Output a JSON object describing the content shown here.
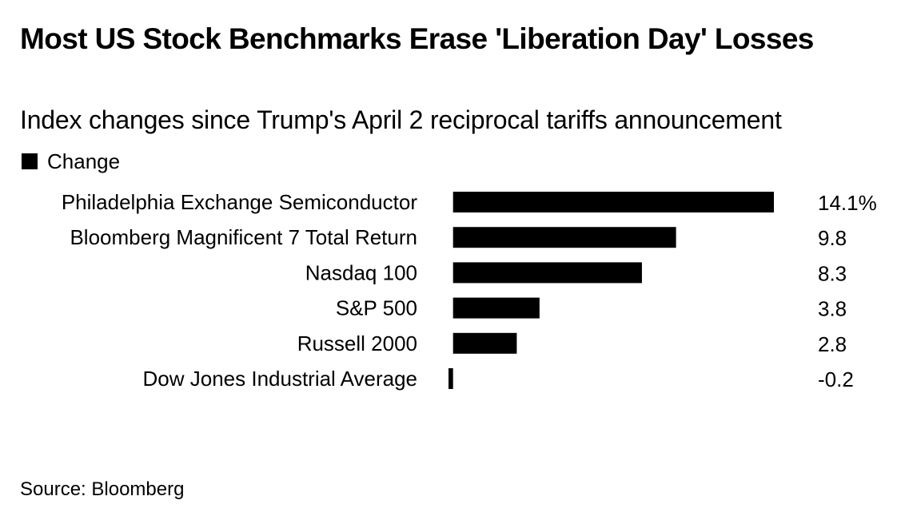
{
  "header": {
    "title": "Most US Stock Benchmarks Erase 'Liberation Day' Losses",
    "subtitle": "Index changes since Trump's April 2 reciprocal tariffs announcement"
  },
  "footer": {
    "source": "Source: Bloomberg"
  },
  "colors": {
    "bar": "#000000",
    "text": "#000000",
    "background": "#ffffff"
  },
  "chart_data": {
    "type": "bar",
    "orientation": "horizontal",
    "legend_position": "top-left",
    "grid": false,
    "categories": [
      "Philadelphia Exchange Semiconductor",
      "Bloomberg Magnificent 7 Total Return",
      "Nasdaq 100",
      "S&P 500",
      "Russell 2000",
      "Dow Jones Industrial Average"
    ],
    "series": [
      {
        "name": "Change",
        "values": [
          14.1,
          9.8,
          8.3,
          3.8,
          2.8,
          -0.2
        ]
      }
    ],
    "value_labels": [
      "14.1%",
      "9.8",
      "8.3",
      "3.8",
      "2.8",
      "-0.2"
    ],
    "xlim": [
      -0.2,
      14.1
    ]
  }
}
